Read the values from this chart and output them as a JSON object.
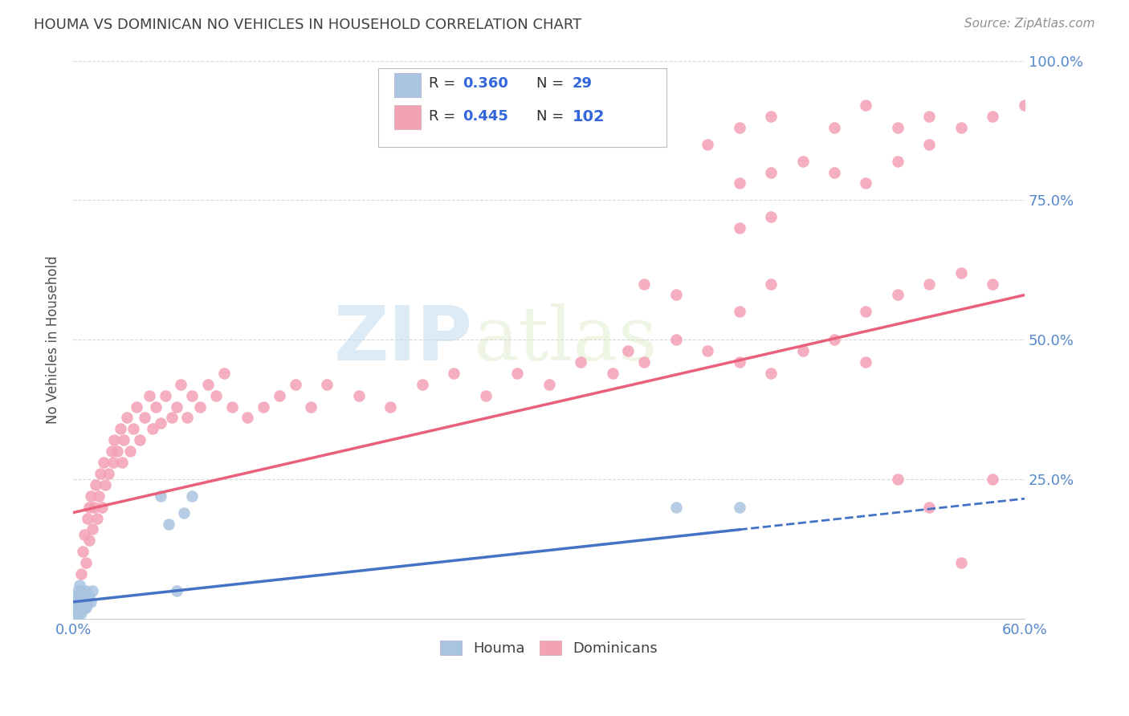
{
  "title": "HOUMA VS DOMINICAN NO VEHICLES IN HOUSEHOLD CORRELATION CHART",
  "source": "Source: ZipAtlas.com",
  "ylabel": "No Vehicles in Household",
  "xlim": [
    0.0,
    0.6
  ],
  "ylim": [
    0.0,
    1.0
  ],
  "houma_R": 0.36,
  "houma_N": 29,
  "dominican_R": 0.445,
  "dominican_N": 102,
  "houma_color": "#a8c4e0",
  "dominican_color": "#f4a0b5",
  "houma_line_color": "#4472c4",
  "dominican_line_color": "#e8607a",
  "legend_label_houma": "Houma",
  "legend_label_dominican": "Dominicans",
  "background_color": "#ffffff",
  "grid_color": "#d8d8d8",
  "title_color": "#404040",
  "source_color": "#909090",
  "watermark_zip": "ZIP",
  "watermark_atlas": "atlas",
  "houma_x": [
    0.001,
    0.002,
    0.002,
    0.003,
    0.003,
    0.003,
    0.004,
    0.004,
    0.004,
    0.005,
    0.005,
    0.005,
    0.006,
    0.006,
    0.007,
    0.007,
    0.008,
    0.008,
    0.009,
    0.01,
    0.011,
    0.012,
    0.055,
    0.06,
    0.065,
    0.07,
    0.075,
    0.38,
    0.42
  ],
  "houma_y": [
    0.01,
    0.02,
    0.04,
    0.01,
    0.03,
    0.05,
    0.02,
    0.04,
    0.06,
    0.01,
    0.03,
    0.05,
    0.02,
    0.04,
    0.02,
    0.04,
    0.02,
    0.05,
    0.03,
    0.04,
    0.03,
    0.05,
    0.22,
    0.17,
    0.05,
    0.19,
    0.22,
    0.2,
    0.2
  ],
  "dominican_x": [
    0.005,
    0.006,
    0.007,
    0.008,
    0.009,
    0.01,
    0.01,
    0.011,
    0.012,
    0.013,
    0.014,
    0.015,
    0.016,
    0.017,
    0.018,
    0.019,
    0.02,
    0.022,
    0.024,
    0.025,
    0.026,
    0.028,
    0.03,
    0.031,
    0.032,
    0.034,
    0.036,
    0.038,
    0.04,
    0.042,
    0.045,
    0.048,
    0.05,
    0.052,
    0.055,
    0.058,
    0.062,
    0.065,
    0.068,
    0.072,
    0.075,
    0.08,
    0.085,
    0.09,
    0.095,
    0.1,
    0.11,
    0.12,
    0.13,
    0.14,
    0.15,
    0.16,
    0.18,
    0.2,
    0.22,
    0.24,
    0.26,
    0.28,
    0.3,
    0.32,
    0.34,
    0.35,
    0.36,
    0.38,
    0.4,
    0.42,
    0.44,
    0.46,
    0.48,
    0.5,
    0.52,
    0.54,
    0.56,
    0.58,
    0.4,
    0.42,
    0.44,
    0.48,
    0.5,
    0.52,
    0.54,
    0.36,
    0.38,
    0.42,
    0.44,
    0.5,
    0.52,
    0.54,
    0.56,
    0.58,
    0.42,
    0.44,
    0.46,
    0.48,
    0.5,
    0.52,
    0.54,
    0.56,
    0.58,
    0.6,
    0.42,
    0.44
  ],
  "dominican_y": [
    0.08,
    0.12,
    0.15,
    0.1,
    0.18,
    0.14,
    0.2,
    0.22,
    0.16,
    0.2,
    0.24,
    0.18,
    0.22,
    0.26,
    0.2,
    0.28,
    0.24,
    0.26,
    0.3,
    0.28,
    0.32,
    0.3,
    0.34,
    0.28,
    0.32,
    0.36,
    0.3,
    0.34,
    0.38,
    0.32,
    0.36,
    0.4,
    0.34,
    0.38,
    0.35,
    0.4,
    0.36,
    0.38,
    0.42,
    0.36,
    0.4,
    0.38,
    0.42,
    0.4,
    0.44,
    0.38,
    0.36,
    0.38,
    0.4,
    0.42,
    0.38,
    0.42,
    0.4,
    0.38,
    0.42,
    0.44,
    0.4,
    0.44,
    0.42,
    0.46,
    0.44,
    0.48,
    0.46,
    0.5,
    0.48,
    0.46,
    0.44,
    0.48,
    0.5,
    0.46,
    0.25,
    0.2,
    0.1,
    0.25,
    0.85,
    0.88,
    0.9,
    0.88,
    0.92,
    0.88,
    0.9,
    0.6,
    0.58,
    0.55,
    0.6,
    0.55,
    0.58,
    0.6,
    0.62,
    0.6,
    0.78,
    0.8,
    0.82,
    0.8,
    0.78,
    0.82,
    0.85,
    0.88,
    0.9,
    0.92,
    0.7,
    0.72
  ],
  "houma_line_x0": 0.0,
  "houma_line_x1": 0.6,
  "houma_line_y0": 0.03,
  "houma_line_y1": 0.215,
  "dom_line_x0": 0.0,
  "dom_line_x1": 0.6,
  "dom_line_y0": 0.19,
  "dom_line_y1": 0.58
}
